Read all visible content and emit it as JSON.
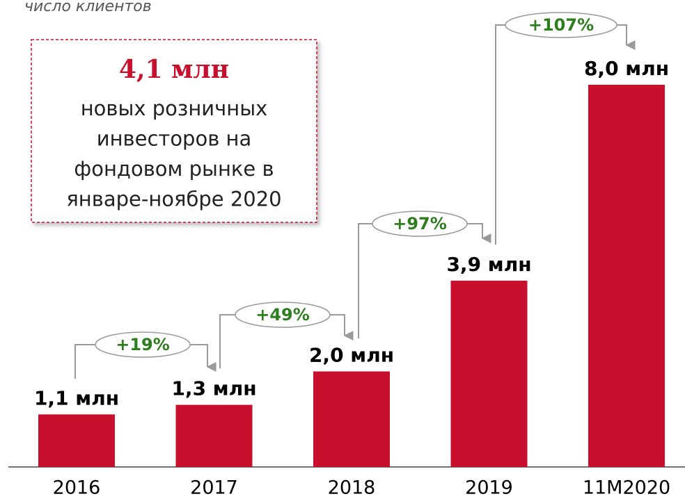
{
  "chart_data": {
    "type": "bar",
    "subtitle": "число клиентов",
    "categories": [
      "2016",
      "2017",
      "2018",
      "2019",
      "11M2020"
    ],
    "values": [
      1.1,
      1.3,
      2.0,
      3.9,
      8.0
    ],
    "value_labels": [
      "1,1 млн",
      "1,3 млн",
      "2,0 млн",
      "3,9 млн",
      "8,0 млн"
    ],
    "color": "#c8102e",
    "ylim": [
      0,
      8.0
    ],
    "growth_annotations": [
      "+19%",
      "+49%",
      "+97%",
      "+107%"
    ],
    "callout": {
      "headline": "4,1 млн",
      "lines": [
        "новых розничных",
        "инвесторов на",
        "фондовом рынке в",
        "январе-ноябре 2020"
      ]
    }
  }
}
